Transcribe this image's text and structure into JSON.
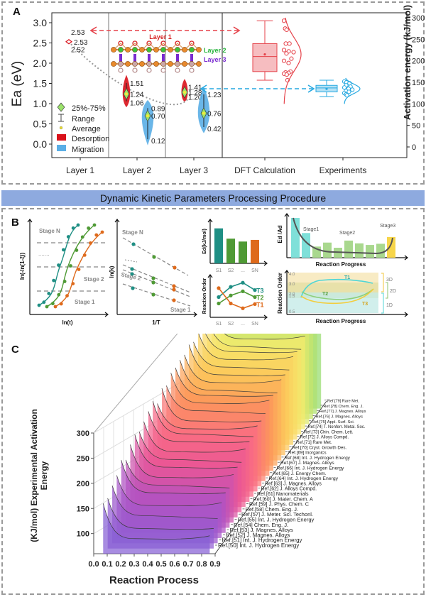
{
  "banner": {
    "title": "Dynamic Kinetic Parameters Processing Procedure"
  },
  "panel_labels": {
    "a": "A",
    "b": "B",
    "c": "C"
  },
  "chart_data": [
    {
      "id": "A",
      "type": "violin",
      "ylabel_left": "Ea (eV)",
      "ylabel_right": "Activation energy (kJ/mol)",
      "ylim_left": [
        -0.2,
        3.2
      ],
      "yticks_left": [
        "0.0",
        "0.5",
        "1.0",
        "1.5",
        "2.0",
        "2.5",
        "3.0"
      ],
      "ylim_right": [
        -20,
        310
      ],
      "yticks_right": [
        "0",
        "50",
        "100",
        "150",
        "200",
        "250",
        "300"
      ],
      "categories": [
        "Layer 1",
        "Layer 2",
        "Layer 3",
        "DFT Calculation",
        "Experiments"
      ],
      "legend": [
        "25%-75%",
        "Range",
        "Average",
        "Desorption",
        "Migration"
      ],
      "colors": {
        "desorption": "#d9111a",
        "migration": "#5aaee6",
        "dft": "#e5424a",
        "exp": "#27a9e1",
        "diamond": "#9be36b",
        "trend": "#999999"
      },
      "desorption": [
        {
          "layer": "Layer 1",
          "max": 2.53,
          "avg": 2.53,
          "min": 2.52
        },
        {
          "layer": "Layer 2",
          "max": 1.51,
          "avg": 1.24,
          "min": 1.06
        },
        {
          "layer": "Layer 3",
          "max": 1.41,
          "avg": 1.28,
          "min": 1.2
        }
      ],
      "migration": [
        {
          "layer": "Layer 2",
          "max": 0.89,
          "avg": 0.7,
          "min": 0.12
        },
        {
          "layer": "Layer 3",
          "max": 1.23,
          "avg": 0.76,
          "min": 0.42
        }
      ],
      "structure_labels": [
        "Layer 1",
        "Layer 2",
        "Layer 3"
      ],
      "boxes": [
        {
          "name": "DFT Calculation",
          "whisker_low": 155,
          "q1": 175,
          "median": 210,
          "q3": 240,
          "whisker_high": 293,
          "mean": 215,
          "points": [
            293,
            275,
            272,
            240,
            240,
            225,
            222,
            220,
            217,
            205,
            200,
            195,
            175,
            173,
            172,
            170,
            168,
            155
          ]
        },
        {
          "name": "Experiments",
          "whisker_low": 117,
          "q1": 128,
          "median": 137,
          "q3": 143,
          "whisker_high": 155,
          "mean": 135,
          "points": [
            152,
            150,
            148,
            143,
            140,
            138,
            135,
            133,
            130,
            128,
            125,
            122,
            120
          ]
        }
      ]
    },
    {
      "id": "B1",
      "type": "scatter",
      "xlabel": "ln(t)",
      "ylabel": "ln(-ln(1-ξ))",
      "annotations": [
        "Stage N",
        "Stage 2",
        "Stage 1",
        "......."
      ],
      "series": [
        "teal",
        "green",
        "orange"
      ]
    },
    {
      "id": "B2",
      "type": "line",
      "xlabel": "1/T",
      "ylabel": "ln(k)",
      "annotations": [
        "Stage N",
        "Stage 2",
        "Stage 1"
      ]
    },
    {
      "id": "B3",
      "type": "bar",
      "ylabel": "Ed(kJ/mol)",
      "categories": [
        "S1",
        "S2",
        "...",
        "SN"
      ],
      "values": [
        0.85,
        0.6,
        0.53,
        0.57
      ],
      "colors": [
        "#1f8f84",
        "#4f9a35",
        "#4f9a35",
        "#de6a1c"
      ]
    },
    {
      "id": "B4",
      "type": "line",
      "ylabel": "Reaction Order",
      "categories": [
        "S1",
        "S2",
        "...",
        "SN"
      ],
      "series": [
        {
          "name": "T3",
          "values": [
            0.5,
            0.82,
            0.95,
            0.72
          ],
          "color": "#1f8f84"
        },
        {
          "name": "T2",
          "values": [
            0.3,
            0.55,
            0.68,
            0.5
          ],
          "color": "#4f9a35"
        },
        {
          "name": "T1",
          "values": [
            0.78,
            0.3,
            0.15,
            0.28
          ],
          "color": "#de6a1c"
        }
      ]
    },
    {
      "id": "B5",
      "type": "bar",
      "ylabel": "Ed /Ad",
      "xlabel": "Reaction Progress",
      "annotations": [
        "Stage1",
        "Stage2",
        "Stage3"
      ],
      "values": [
        1.0,
        0.62,
        0.28,
        0.38,
        0.25,
        0.43,
        0.36,
        0.32,
        0.35,
        0.52
      ]
    },
    {
      "id": "B6",
      "type": "line",
      "ylabel": "Reaction Order",
      "xlabel": "Reaction Progress",
      "yticks": [
        "0.5",
        "1.5",
        "2.0",
        "3.0",
        "4.0"
      ],
      "ylim": [
        0.5,
        4.0
      ],
      "bands": [
        "3D",
        "2D",
        "1D"
      ],
      "series": [
        {
          "name": "T1",
          "color": "#4fd6d6"
        },
        {
          "name": "T2",
          "color": "#8ccf7a"
        },
        {
          "name": "T3",
          "color": "#f3cd3c"
        }
      ]
    },
    {
      "id": "C",
      "type": "area",
      "xlabel": "Reaction Process",
      "ylabel": "(KJ/mol) Experimental Activation Energy",
      "xticks": [
        "0.0",
        "0.1",
        "0.2",
        "0.3",
        "0.4",
        "0.5",
        "0.6",
        "0.7",
        "0.8",
        "0.9"
      ],
      "yticks": [
        "100",
        "150",
        "200",
        "250",
        "300"
      ],
      "xlim": [
        0.0,
        0.9
      ],
      "ylim": [
        60,
        300
      ],
      "series": [
        "Ref.[50] Int. J. Hydrogen Energy",
        "Ref.[51] Int. J. Hydrogen Energy",
        "Ref.[52] J. Magnes. Alloys",
        "Ref.[53] J. Magnes. Alloys",
        "Ref.[54] Chem. Eng. J.",
        "Ref.[55] Int. J. Hydrogen Energy",
        "Ref.[57] J. Meter. Sci. Techonl.",
        "Ref.[58] Chem. Eng. J.",
        "Ref.[59] J. Phys. Chem. C",
        "Ref.[60] J. Mater. Chem. A",
        "Ref.[61] Nanomaterials",
        "Ref.[62] J. Alloys Compd.",
        "Ref.[63] J. Magnes. Alloys",
        "Ref.[64] Int. J. Hydrogen Energy",
        "Ref.[65] J. Energy Chem.",
        "Ref.[66] Int. J. Hydrogen Energy",
        "Ref.[67] J. Magnes. Alloys",
        "Ref.[68] Int. J. Hydrogen Energy",
        "Ref.[69] Inorganics",
        "Ref.[70] Cryst. Growth Des.",
        "Ref.[71] Rare Met.",
        "Ref.[72] J. Alloys Compd.",
        "Ref.[73] Chin. Chem. Lett.",
        "Ref.[74] T. Nonferr. Metal. Soc.",
        "Ref.[75] Appl. Surf. Sci.",
        "Ref.[76] J. Magnes. Alloys",
        "Ref.[77] J. Magnes. Alloys",
        "Ref.[78] Chem. Eng. J.",
        "Ref.[79] Rare Met."
      ],
      "peak_values": [
        160,
        160,
        175,
        185,
        205,
        195,
        215,
        225,
        220,
        230,
        240,
        250,
        235,
        255,
        250,
        265,
        265,
        270,
        270,
        280,
        275,
        285,
        285,
        290,
        295,
        300,
        300,
        295,
        305
      ],
      "plateau_values": [
        90,
        100,
        115,
        125,
        140,
        145,
        150,
        160,
        165,
        170,
        180,
        185,
        185,
        190,
        200,
        205,
        210,
        210,
        215,
        220,
        225,
        230,
        235,
        235,
        240,
        245,
        245,
        250,
        250
      ]
    }
  ]
}
